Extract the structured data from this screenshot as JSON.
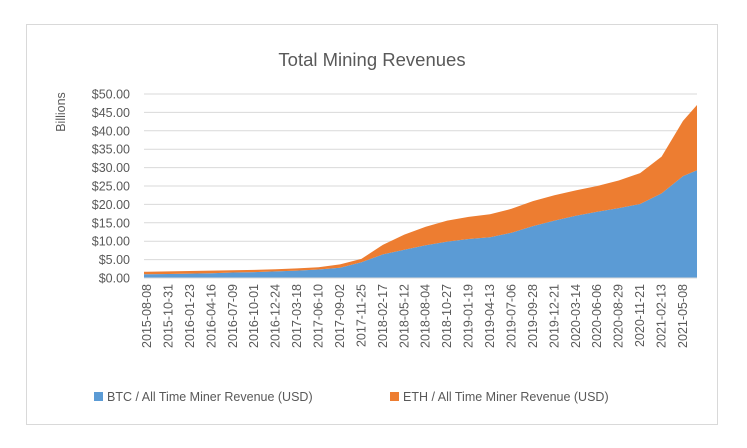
{
  "chart_data": {
    "type": "area",
    "stacked": true,
    "title": "Total Mining Revenues",
    "xlabel": "",
    "ylabel": "Billions",
    "ylim": [
      0,
      50
    ],
    "y_ticks": [
      0,
      5,
      10,
      15,
      20,
      25,
      30,
      35,
      40,
      45,
      50
    ],
    "y_tick_labels": [
      "$0.00",
      "$5.00",
      "$10.00",
      "$15.00",
      "$20.00",
      "$25.00",
      "$30.00",
      "$35.00",
      "$40.00",
      "$45.00",
      "$50.00"
    ],
    "grid": true,
    "legend_position": "bottom",
    "categories": [
      "2015-08-08",
      "2015-10-31",
      "2016-01-23",
      "2016-04-16",
      "2016-07-09",
      "2016-10-01",
      "2016-12-24",
      "2017-03-18",
      "2017-06-10",
      "2017-09-02",
      "2017-11-25",
      "2018-02-17",
      "2018-05-12",
      "2018-08-04",
      "2018-10-27",
      "2019-01-19",
      "2019-04-13",
      "2019-07-06",
      "2019-09-28",
      "2019-12-21",
      "2020-03-14",
      "2020-06-06",
      "2020-08-29",
      "2020-11-21",
      "2021-02-13",
      "2021-05-08"
    ],
    "series": [
      {
        "name": "BTC / All Time Miner Revenue (USD)",
        "color": "#5b9bd5",
        "values": [
          1.0,
          1.1,
          1.2,
          1.3,
          1.5,
          1.6,
          1.8,
          2.0,
          2.3,
          2.8,
          4.3,
          6.4,
          7.7,
          8.9,
          9.9,
          10.6,
          11.1,
          12.3,
          14.1,
          15.6,
          16.9,
          18.0,
          19.0,
          20.1,
          23.0,
          27.7
        ],
        "last_value": 29.3
      },
      {
        "name": "ETH / All Time Miner Revenue (USD)",
        "color": "#ed7d31",
        "values": [
          0.7,
          0.7,
          0.7,
          0.7,
          0.6,
          0.6,
          0.6,
          0.6,
          0.6,
          0.9,
          0.9,
          2.6,
          4.1,
          5.0,
          5.7,
          6.0,
          6.2,
          6.5,
          6.8,
          6.9,
          6.9,
          7.0,
          7.5,
          8.4,
          10.0,
          15.0
        ],
        "last_value": 17.7
      }
    ]
  }
}
